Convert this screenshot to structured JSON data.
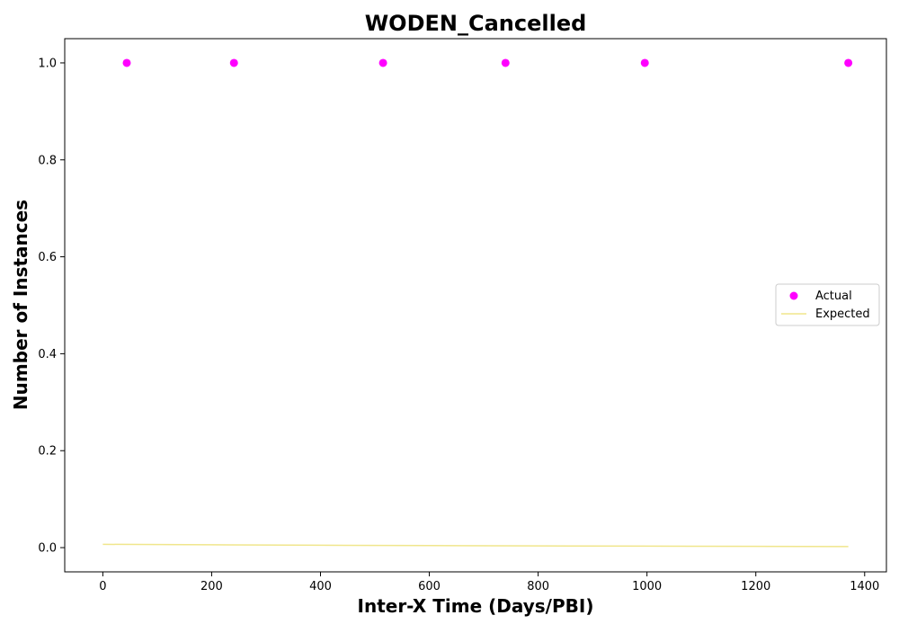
{
  "chart_data": {
    "type": "scatter",
    "title": "WODEN_Cancelled",
    "xlabel": "Inter-X Time (Days/PBI)",
    "ylabel": "Number of Instances",
    "xlim": [
      -70,
      1440
    ],
    "ylim": [
      -0.05,
      1.05
    ],
    "xticks": [
      0,
      200,
      400,
      600,
      800,
      1000,
      1200,
      1400
    ],
    "xtick_labels": [
      "0",
      "200",
      "400",
      "600",
      "800",
      "1000",
      "1200",
      "1400"
    ],
    "yticks": [
      0.0,
      0.2,
      0.4,
      0.6,
      0.8,
      1.0
    ],
    "ytick_labels": [
      "0.0",
      "0.2",
      "0.4",
      "0.6",
      "0.8",
      "1.0"
    ],
    "grid": false,
    "legend_position": "center-right",
    "series": [
      {
        "name": "Actual",
        "kind": "scatter",
        "color": "#ff00ff",
        "x": [
          44,
          241,
          515,
          740,
          996,
          1370
        ],
        "y": [
          1,
          1,
          1,
          1,
          1,
          1
        ]
      },
      {
        "name": "Expected",
        "kind": "line",
        "color": "#f0e68c",
        "x": [
          0,
          200,
          400,
          600,
          800,
          1000,
          1200,
          1370
        ],
        "y": [
          0.0068,
          0.0058,
          0.0049,
          0.0042,
          0.0036,
          0.003,
          0.0026,
          0.0022
        ]
      }
    ]
  }
}
